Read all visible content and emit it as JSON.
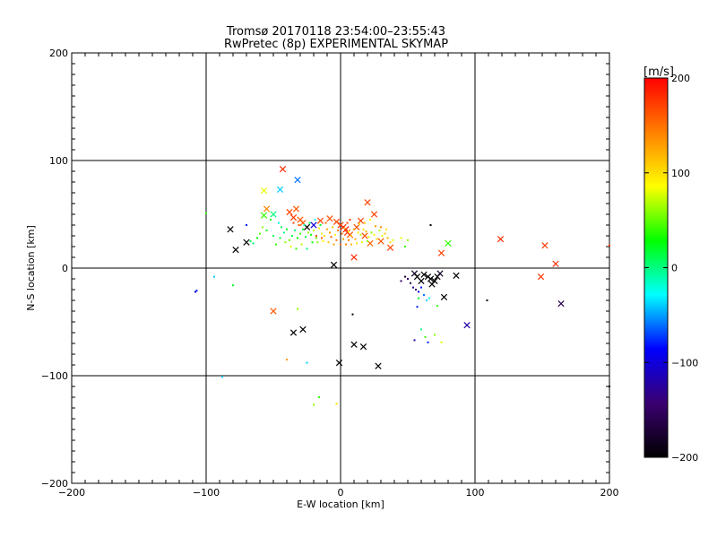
{
  "chart_data": {
    "type": "scatter",
    "title": "Tromsø 20170118 23:54:00–23:55:43",
    "subtitle": "RwPretec (8p) EXPERIMENTAL SKYMAP",
    "xlabel": "E-W location [km]",
    "ylabel": "N-S location [km]",
    "xlim": [
      -200,
      200
    ],
    "ylim": [
      -200,
      200
    ],
    "xticks": [
      -200,
      -100,
      0,
      100,
      200
    ],
    "yticks": [
      -200,
      -100,
      0,
      100,
      200
    ],
    "tick_labels_x": [
      "−200",
      "−100",
      "0",
      "100",
      "200"
    ],
    "tick_labels_y": [
      "−200",
      "−100",
      "0",
      "100",
      "200"
    ],
    "grid": true,
    "colorbar": {
      "label": "[m/s]",
      "range": [
        -200,
        200
      ],
      "ticks": [
        200,
        100,
        0,
        -100,
        -200
      ],
      "tick_labels": [
        "200",
        "100",
        "0",
        "−100",
        "−200"
      ],
      "colors": [
        "#000000",
        "#3a0070",
        "#0000ff",
        "#00ffff",
        "#00ff00",
        "#ffff00",
        "#ff8000",
        "#ff0000"
      ]
    },
    "series": [
      {
        "marker": "x",
        "points": [
          [
            -82,
            36,
            -200
          ],
          [
            -78,
            17,
            -200
          ],
          [
            -70,
            24,
            -200
          ],
          [
            -43,
            92,
            180
          ],
          [
            -57,
            72,
            80
          ],
          [
            -55,
            55,
            140
          ],
          [
            -50,
            50,
            0
          ],
          [
            -57,
            49,
            40
          ],
          [
            -45,
            73,
            -40
          ],
          [
            -32,
            82,
            -60
          ],
          [
            -33,
            55,
            160
          ],
          [
            -38,
            52,
            170
          ],
          [
            -35,
            47,
            175
          ],
          [
            -30,
            45,
            160
          ],
          [
            -28,
            42,
            160
          ],
          [
            -25,
            38,
            -200
          ],
          [
            -20,
            40,
            -100
          ],
          [
            -15,
            44,
            170
          ],
          [
            -8,
            46,
            165
          ],
          [
            -3,
            43,
            170
          ],
          [
            0,
            40,
            170
          ],
          [
            2,
            38,
            180
          ],
          [
            4,
            36,
            190
          ],
          [
            5,
            33,
            175
          ],
          [
            7,
            31,
            165
          ],
          [
            12,
            38,
            165
          ],
          [
            15,
            44,
            170
          ],
          [
            20,
            61,
            170
          ],
          [
            25,
            50,
            170
          ],
          [
            18,
            30,
            165
          ],
          [
            22,
            23,
            155
          ],
          [
            10,
            10,
            180
          ],
          [
            -5,
            3,
            -200
          ],
          [
            -50,
            -40,
            160
          ],
          [
            -28,
            -57,
            -200
          ],
          [
            -35,
            -60,
            -200
          ],
          [
            10,
            -71,
            -200
          ],
          [
            17,
            -73,
            -200
          ],
          [
            28,
            -91,
            -200
          ],
          [
            -1,
            -88,
            -200
          ],
          [
            55,
            -5,
            -180
          ],
          [
            57,
            -8,
            -200
          ],
          [
            60,
            -12,
            -200
          ],
          [
            62,
            -6,
            -200
          ],
          [
            65,
            -8,
            -200
          ],
          [
            67,
            -10,
            -200
          ],
          [
            68,
            -15,
            -200
          ],
          [
            70,
            -12,
            -200
          ],
          [
            72,
            -8,
            -200
          ],
          [
            74,
            -5,
            -180
          ],
          [
            77,
            -27,
            -200
          ],
          [
            86,
            -7,
            -200
          ],
          [
            75,
            14,
            170
          ],
          [
            80,
            23,
            40
          ],
          [
            119,
            27,
            180
          ],
          [
            152,
            21,
            175
          ],
          [
            149,
            -8,
            175
          ],
          [
            160,
            4,
            180
          ],
          [
            164,
            -33,
            -160
          ],
          [
            94,
            -53,
            -120
          ],
          [
            37,
            19,
            170
          ],
          [
            30,
            25,
            160
          ]
        ]
      },
      {
        "marker": "dot",
        "points": [
          [
            -100,
            51,
            40
          ],
          [
            -108,
            -22,
            -100
          ],
          [
            -107,
            -21,
            -80
          ],
          [
            -94,
            -8,
            -40
          ],
          [
            -88,
            -101,
            -40
          ],
          [
            -80,
            -16,
            20
          ],
          [
            -65,
            23,
            0
          ],
          [
            -60,
            32,
            50
          ],
          [
            -55,
            35,
            30
          ],
          [
            -50,
            30,
            10
          ],
          [
            -48,
            22,
            40
          ],
          [
            -45,
            28,
            20
          ],
          [
            -42,
            33,
            0
          ],
          [
            -40,
            36,
            20
          ],
          [
            -38,
            26,
            50
          ],
          [
            -36,
            30,
            10
          ],
          [
            -34,
            35,
            0
          ],
          [
            -32,
            28,
            30
          ],
          [
            -30,
            32,
            40
          ],
          [
            -28,
            36,
            20
          ],
          [
            -26,
            29,
            10
          ],
          [
            -24,
            33,
            60
          ],
          [
            -22,
            31,
            30
          ],
          [
            -20,
            35,
            70
          ],
          [
            -18,
            28,
            50
          ],
          [
            -16,
            37,
            90
          ],
          [
            -14,
            32,
            80
          ],
          [
            -12,
            30,
            100
          ],
          [
            -10,
            36,
            120
          ],
          [
            -8,
            33,
            130
          ],
          [
            -6,
            38,
            110
          ],
          [
            -4,
            31,
            90
          ],
          [
            -2,
            35,
            140
          ],
          [
            1,
            32,
            150
          ],
          [
            3,
            37,
            120
          ],
          [
            6,
            34,
            100
          ],
          [
            8,
            30,
            110
          ],
          [
            10,
            36,
            130
          ],
          [
            13,
            33,
            90
          ],
          [
            15,
            31,
            70
          ],
          [
            17,
            36,
            100
          ],
          [
            19,
            34,
            120
          ],
          [
            21,
            29,
            80
          ],
          [
            23,
            33,
            60
          ],
          [
            25,
            31,
            90
          ],
          [
            27,
            27,
            100
          ],
          [
            29,
            35,
            70
          ],
          [
            31,
            30,
            80
          ],
          [
            33,
            32,
            110
          ],
          [
            35,
            28,
            120
          ],
          [
            37,
            24,
            100
          ],
          [
            39,
            26,
            80
          ],
          [
            -44,
            38,
            10
          ],
          [
            -46,
            42,
            -20
          ],
          [
            -41,
            24,
            60
          ],
          [
            -37,
            20,
            80
          ],
          [
            -33,
            18,
            40
          ],
          [
            -29,
            22,
            70
          ],
          [
            -27,
            40,
            -10
          ],
          [
            -23,
            42,
            10
          ],
          [
            -19,
            45,
            -30
          ],
          [
            -15,
            40,
            20
          ],
          [
            -11,
            42,
            150
          ],
          [
            -7,
            29,
            160
          ],
          [
            -3,
            26,
            150
          ],
          [
            2,
            27,
            130
          ],
          [
            6,
            26,
            140
          ],
          [
            11,
            27,
            120
          ],
          [
            14,
            41,
            100
          ],
          [
            18,
            42,
            110
          ],
          [
            22,
            45,
            90
          ],
          [
            26,
            39,
            130
          ],
          [
            30,
            38,
            140
          ],
          [
            34,
            36,
            100
          ],
          [
            -25,
            18,
            0
          ],
          [
            -21,
            24,
            30
          ],
          [
            -17,
            24,
            60
          ],
          [
            -13,
            25,
            90
          ],
          [
            -9,
            24,
            110
          ],
          [
            -5,
            22,
            130
          ],
          [
            0,
            22,
            150
          ],
          [
            4,
            22,
            140
          ],
          [
            8,
            22,
            120
          ],
          [
            12,
            23,
            100
          ],
          [
            16,
            24,
            80
          ],
          [
            20,
            25,
            60
          ],
          [
            -52,
            45,
            20
          ],
          [
            -58,
            38,
            60
          ],
          [
            -62,
            28,
            30
          ],
          [
            -67,
            25,
            10
          ],
          [
            -70,
            40,
            -80
          ],
          [
            -35,
            42,
            170
          ],
          [
            -31,
            40,
            160
          ],
          [
            5,
            42,
            170
          ],
          [
            7,
            45,
            175
          ],
          [
            -18,
            30,
            165
          ],
          [
            -14,
            28,
            155
          ],
          [
            45,
            28,
            80
          ],
          [
            50,
            26,
            60
          ],
          [
            48,
            20,
            40
          ],
          [
            -40,
            -85,
            130
          ],
          [
            -25,
            -88,
            -40
          ],
          [
            -20,
            -127,
            60
          ],
          [
            -16,
            -120,
            40
          ],
          [
            -3,
            -126,
            100
          ],
          [
            9,
            -43,
            -200
          ],
          [
            -32,
            -38,
            60
          ],
          [
            50,
            -10,
            -140
          ],
          [
            52,
            -14,
            -160
          ],
          [
            54,
            -18,
            -120
          ],
          [
            56,
            -20,
            -140
          ],
          [
            58,
            -22,
            -100
          ],
          [
            60,
            -18,
            -80
          ],
          [
            62,
            -25,
            -60
          ],
          [
            64,
            -30,
            -40
          ],
          [
            66,
            -28,
            -20
          ],
          [
            58,
            -28,
            20
          ],
          [
            60,
            -57,
            0
          ],
          [
            63,
            -64,
            40
          ],
          [
            70,
            -62,
            60
          ],
          [
            75,
            -69,
            80
          ],
          [
            55,
            -67,
            -120
          ],
          [
            65,
            -69,
            -80
          ],
          [
            57,
            -36,
            -80
          ],
          [
            72,
            -35,
            40
          ],
          [
            45,
            -12,
            -150
          ],
          [
            48,
            -8,
            -170
          ],
          [
            109,
            -30,
            -200
          ],
          [
            200,
            21,
            175
          ],
          [
            200,
            -110,
            -200
          ],
          [
            67,
            40,
            -200
          ]
        ]
      }
    ]
  }
}
